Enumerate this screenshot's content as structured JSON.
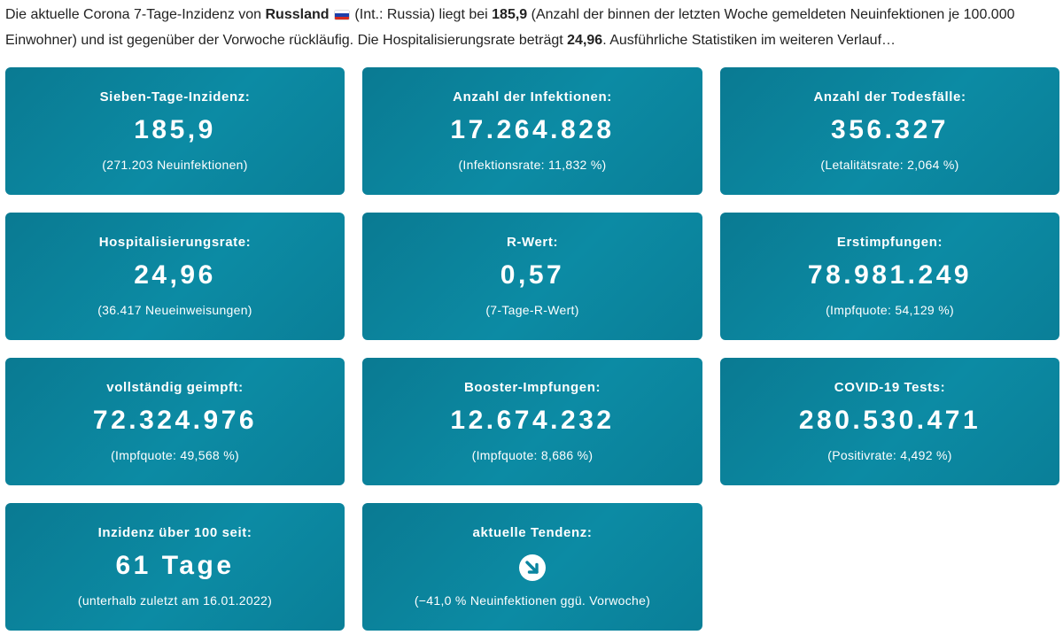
{
  "intro": {
    "p1": "Die aktuelle Corona 7-Tage-Inzidenz von ",
    "country": "Russland",
    "p2": " (Int.: Russia) liegt bei ",
    "incidence": "185,9",
    "p3": " (Anzahl der binnen der letzten Woche gemeldeten Neuinfektionen je 100.000 Einwohner) und ist gegenüber der Vorwoche rückläufig. Die Hospitalisierungsrate beträgt ",
    "hosp": "24,96",
    "p4": ". Ausführliche Statistiken im weiteren Verlauf…",
    "flag_colors": [
      "#ffffff",
      "#1c3faa",
      "#d52b1e"
    ],
    "flag_icon": "russia-flag-icon"
  },
  "cards": [
    {
      "label": "Sieben-Tage-Inzidenz:",
      "value": "185,9",
      "sub": "(271.203 Neuinfektionen)"
    },
    {
      "label": "Anzahl der Infektionen:",
      "value": "17.264.828",
      "sub": "(Infektionsrate: 11,832 %)"
    },
    {
      "label": "Anzahl der Todesfälle:",
      "value": "356.327",
      "sub": "(Letalitätsrate: 2,064 %)"
    },
    {
      "label": "Hospitalisierungsrate:",
      "value": "24,96",
      "sub": "(36.417 Neueinweisungen)"
    },
    {
      "label": "R-Wert:",
      "value": "0,57",
      "sub": "(7-Tage-R-Wert)"
    },
    {
      "label": "Erstimpfungen:",
      "value": "78.981.249",
      "sub": "(Impfquote: 54,129 %)"
    },
    {
      "label": "vollständig geimpft:",
      "value": "72.324.976",
      "sub": "(Impfquote: 49,568 %)"
    },
    {
      "label": "Booster-Impfungen:",
      "value": "12.674.232",
      "sub": "(Impfquote: 8,686 %)"
    },
    {
      "label": "COVID-19 Tests:",
      "value": "280.530.471",
      "sub": "(Positivrate: 4,492 %)"
    },
    {
      "label": "Inzidenz über 100 seit:",
      "value": "61 Tage",
      "sub": "(unterhalb zuletzt am 16.01.2022)"
    },
    {
      "label": "aktuelle Tendenz:",
      "sub": "(−41,0 % Neuinfektionen ggü. Vorwoche)",
      "icon": "trend-down-arrow-icon"
    }
  ],
  "colors": {
    "card": "#0b85a0",
    "text": "#ffffff"
  }
}
